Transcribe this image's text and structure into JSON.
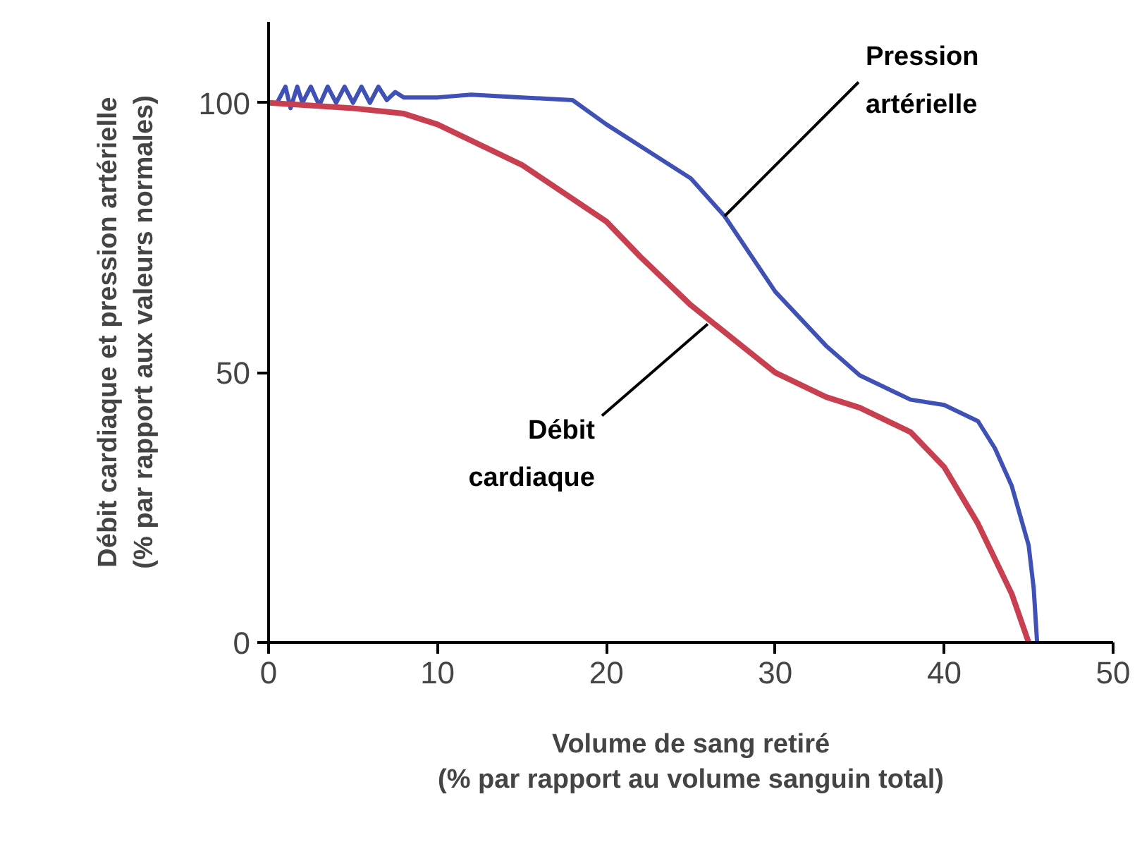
{
  "chart_data": {
    "type": "line",
    "xlabel": "Volume de sang retiré\n(% par rapport au volume sanguin total)",
    "ylabel": "Débit cardiaque et pression artérielle\n(% par rapport aux valeurs normales)",
    "xlim": [
      0,
      50
    ],
    "ylim": [
      0,
      115
    ],
    "xticks": [
      0,
      10,
      20,
      30,
      40,
      50
    ],
    "yticks": [
      0,
      50,
      100
    ],
    "grid": false,
    "marker": "none",
    "line_style": "solid",
    "series": [
      {
        "color": "#3f51b5",
        "x": [
          0.5,
          1,
          1.3,
          1.7,
          2,
          2.5,
          3,
          3.5,
          4,
          4.5,
          5,
          5.5,
          6,
          6.5,
          7,
          7.5,
          8,
          10,
          12,
          15,
          18,
          20,
          22,
          25,
          27,
          30,
          33,
          35,
          38,
          40,
          42,
          43,
          44,
          45,
          45.3,
          45.5
        ],
        "values": [
          100,
          103,
          99,
          103,
          100,
          103,
          99.5,
          103,
          100,
          103,
          100,
          103,
          100,
          103,
          100.5,
          102,
          101,
          101,
          101.5,
          101,
          100.5,
          96,
          92,
          86,
          79,
          65,
          55,
          49.5,
          45,
          44,
          41,
          36,
          29,
          18,
          10,
          0
        ]
      },
      {
        "color": "#c8404f",
        "x": [
          0,
          5,
          8,
          10,
          12,
          15,
          20,
          22,
          25,
          28,
          30,
          33,
          35,
          38,
          40,
          42,
          44,
          45
        ],
        "values": [
          100,
          99,
          98,
          96,
          93,
          88.5,
          78,
          71.5,
          62.5,
          55,
          50,
          45.5,
          43.5,
          39,
          32.5,
          22,
          9,
          0
        ]
      }
    ],
    "annotations": [
      {
        "text": "Pression\nartérielle",
        "x": 27,
        "y": 79
      },
      {
        "text": "Débit\ncardiaque",
        "x": 26,
        "y": 59
      }
    ]
  }
}
